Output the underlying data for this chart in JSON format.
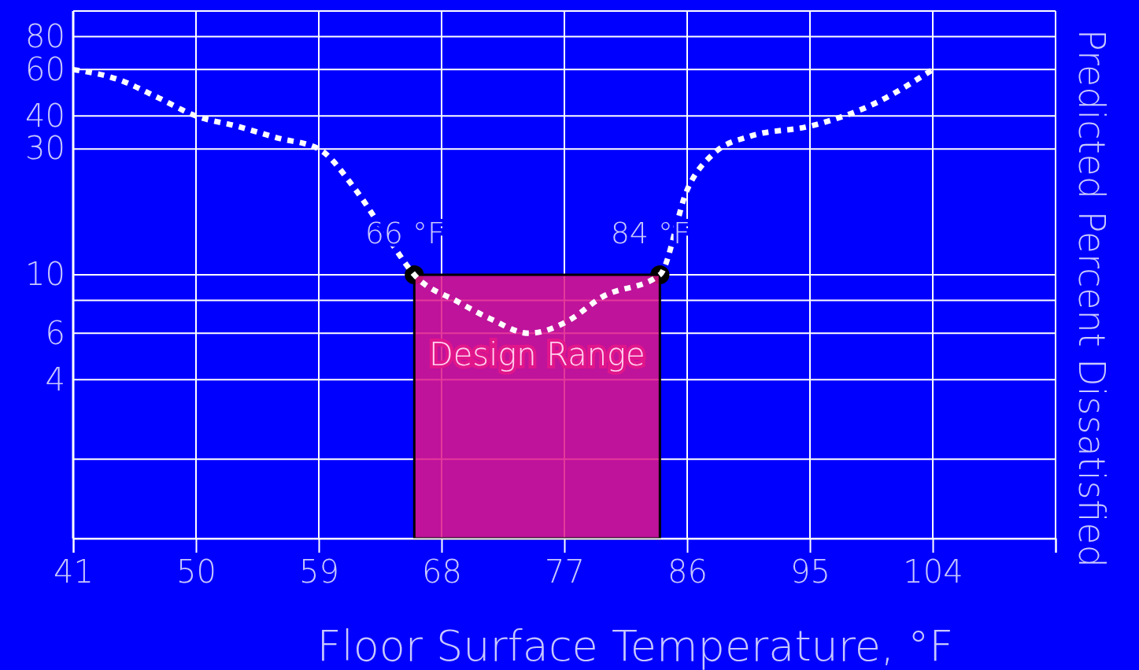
{
  "chart_data": {
    "type": "line",
    "xlabel": "Floor Surface Temperature, °F",
    "ylabel": "Predicted Percent Dissatisfied",
    "log": "y",
    "grid": true,
    "xlim": [
      41,
      113
    ],
    "xticks": [
      41,
      50,
      59,
      68,
      77,
      86,
      95,
      104,
      {
        "value": 113,
        "label": null
      }
    ],
    "ylim": [
      1,
      100
    ],
    "yticks": [
      {
        "value": 2,
        "label": null
      },
      4,
      6,
      {
        "value": 8,
        "label": null
      },
      10,
      30,
      40,
      60,
      80
    ],
    "series": [
      {
        "name": "Design Range",
        "type": "area",
        "color": "#e0168a",
        "x": [
          66,
          84
        ],
        "values": [
          10,
          10
        ]
      },
      {
        "color": "#ffffff",
        "line_style": "dotted",
        "marker": "none",
        "x": [
          41,
          44.3,
          47.2,
          50,
          53,
          56,
          59,
          61.7,
          64,
          66,
          69.2,
          71.6,
          74.4,
          77.3,
          79.7,
          84,
          86,
          88,
          90.6,
          95,
          99.5,
          104
        ],
        "values": [
          60,
          55,
          47,
          40,
          36.6,
          33,
          30,
          21,
          14,
          10,
          7.9,
          6.8,
          6,
          6.7,
          8.2,
          10,
          21,
          29,
          33.5,
          36.6,
          44,
          60
        ]
      },
      {
        "type": "scatter",
        "color": "#000000",
        "marker": "circle",
        "x": [
          66,
          84
        ],
        "values": [
          10,
          10
        ]
      }
    ],
    "annotations": [
      {
        "text": "66 °F",
        "x": 66,
        "y": 10
      },
      {
        "text": "84 °F",
        "x": 84,
        "y": 10
      }
    ]
  }
}
